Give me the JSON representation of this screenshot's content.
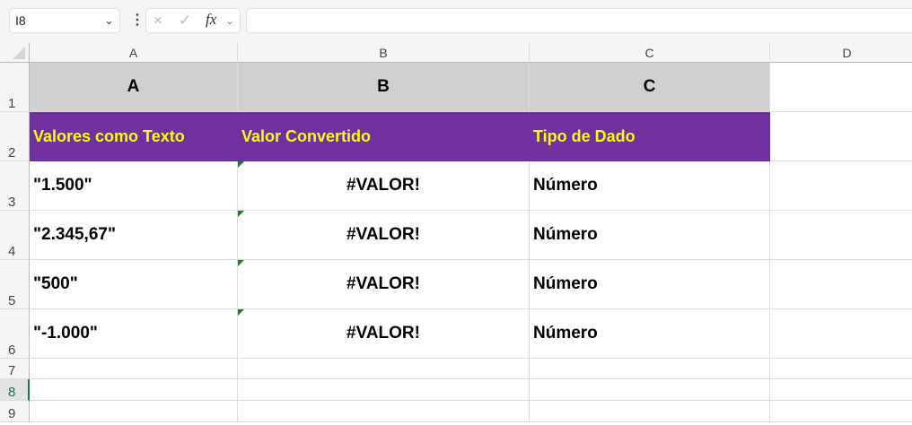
{
  "toolbar": {
    "name_box": "I8",
    "cancel_icon": "×",
    "enter_icon": "✓",
    "fx_label": "fx",
    "formula": ""
  },
  "columns": [
    "A",
    "B",
    "C",
    "D"
  ],
  "rows": [
    "1",
    "2",
    "3",
    "4",
    "5",
    "6",
    "7",
    "8",
    "9"
  ],
  "selected_row": "8",
  "colors": {
    "header_purple": "#7030A0",
    "header_text": "#FFFF00",
    "row1_gray": "#D0D0D0",
    "error_indicator": "#1A7F1A"
  },
  "grid": [
    [
      "A",
      "B",
      "C"
    ],
    [
      "Valores como Texto",
      "Valor Convertido",
      "Tipo de Dado"
    ],
    [
      "\"1.500\"",
      "#VALOR!",
      "Número"
    ],
    [
      "\"2.345,67\"",
      "#VALOR!",
      "Número"
    ],
    [
      "\"500\"",
      "#VALOR!",
      "Número"
    ],
    [
      "\"-1.000\"",
      "#VALOR!",
      "Número"
    ]
  ]
}
